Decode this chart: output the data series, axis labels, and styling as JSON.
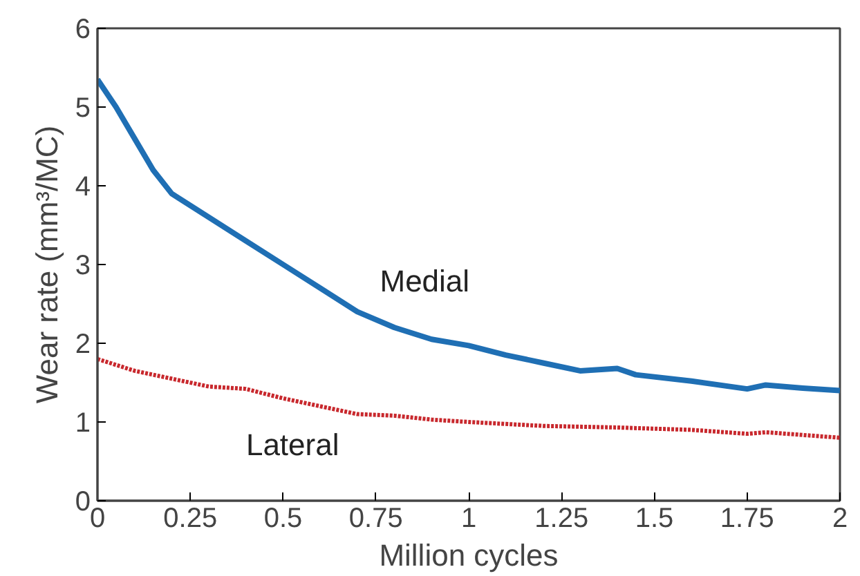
{
  "chart_data": {
    "type": "line",
    "xlabel": "Million cycles",
    "ylabel": "Wear rate (mm³/MC)",
    "xlim": [
      0,
      2
    ],
    "ylim": [
      0,
      6
    ],
    "xticks": [
      0,
      0.25,
      0.5,
      0.75,
      1,
      1.25,
      1.5,
      1.75,
      2
    ],
    "yticks": [
      0,
      1,
      2,
      3,
      4,
      5,
      6
    ],
    "grid": false,
    "series": [
      {
        "name": "Medial",
        "color": "#1f6fb4",
        "line_style": "solid",
        "x": [
          0,
          0.05,
          0.1,
          0.15,
          0.2,
          0.3,
          0.4,
          0.5,
          0.6,
          0.7,
          0.8,
          0.9,
          1.0,
          1.1,
          1.2,
          1.3,
          1.4,
          1.45,
          1.6,
          1.75,
          1.8,
          1.9,
          2.0
        ],
        "values": [
          5.35,
          5.0,
          4.6,
          4.2,
          3.9,
          3.6,
          3.3,
          3.0,
          2.7,
          2.4,
          2.2,
          2.05,
          1.97,
          1.85,
          1.75,
          1.65,
          1.68,
          1.6,
          1.52,
          1.42,
          1.47,
          1.43,
          1.4
        ]
      },
      {
        "name": "Lateral",
        "color": "#c8282d",
        "line_style": "dotted",
        "x": [
          0,
          0.1,
          0.2,
          0.3,
          0.4,
          0.5,
          0.6,
          0.7,
          0.8,
          0.9,
          1.0,
          1.2,
          1.4,
          1.6,
          1.75,
          1.8,
          2.0
        ],
        "values": [
          1.8,
          1.65,
          1.55,
          1.45,
          1.42,
          1.3,
          1.2,
          1.1,
          1.08,
          1.03,
          1.0,
          0.95,
          0.93,
          0.9,
          0.85,
          0.87,
          0.8
        ]
      }
    ]
  }
}
